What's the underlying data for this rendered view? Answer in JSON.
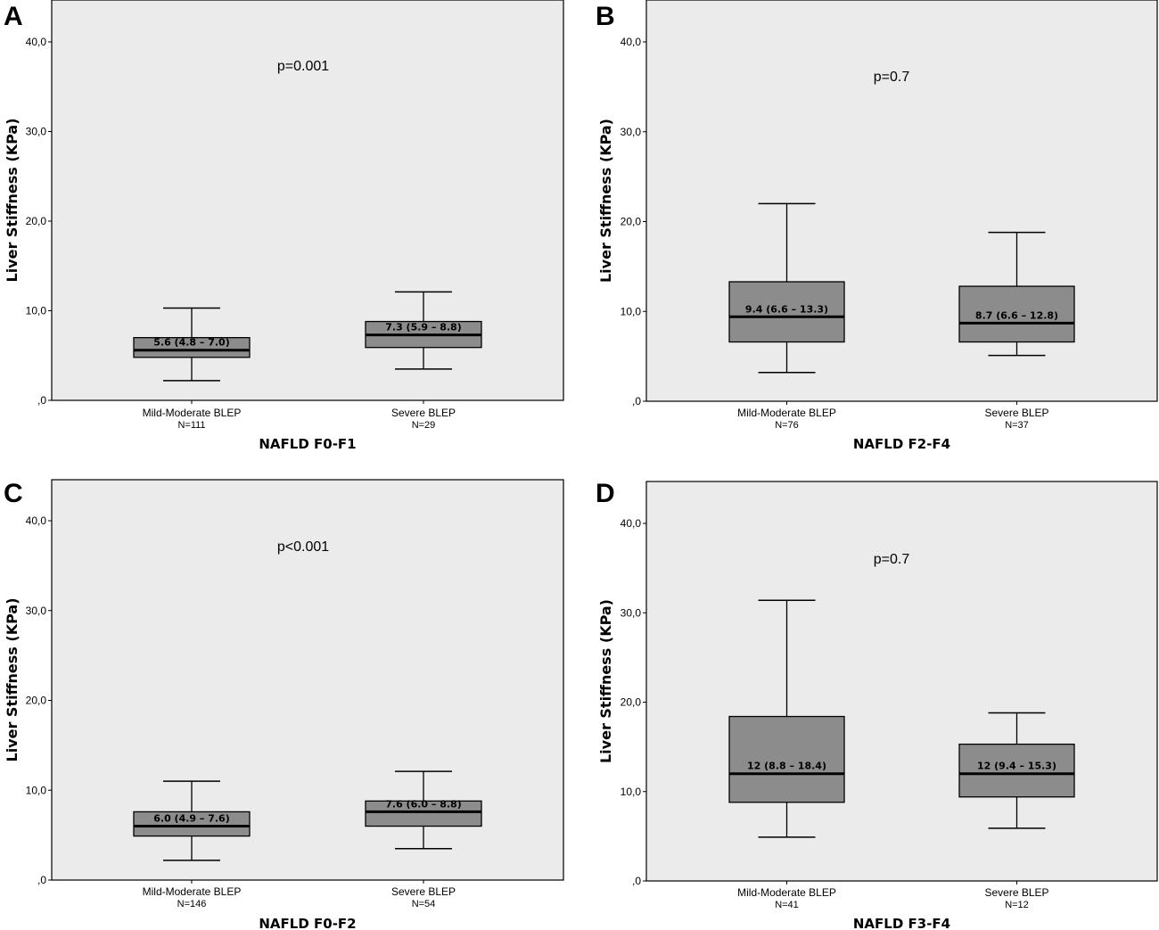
{
  "chart_data": [
    {
      "type": "box",
      "panel": "A",
      "xlabel": "NAFLD F0-F1",
      "ylabel": "Liver Stiffness (KPa)",
      "ylim": [
        0,
        40
      ],
      "yticks": [
        0,
        10,
        20,
        30,
        40
      ],
      "ytick_labels": [
        ",0",
        "10,0",
        "20,0",
        "30,0",
        "40,0"
      ],
      "annotation": "p=0.001",
      "color": "#8c8c8c",
      "background": "#ebebeb",
      "boxes": [
        {
          "category": "Mild-Moderate BLEP",
          "n_label": "N=111",
          "min": 2.2,
          "q1": 4.8,
          "median": 5.6,
          "q3": 7.0,
          "max": 10.3,
          "label": "5.6 (4.8 – 7.0)"
        },
        {
          "category": "Severe BLEP",
          "n_label": "N=29",
          "min": 3.5,
          "q1": 5.9,
          "median": 7.3,
          "q3": 8.8,
          "max": 12.1,
          "label": "7.3 (5.9 – 8.8)"
        }
      ]
    },
    {
      "type": "box",
      "panel": "B",
      "xlabel": "NAFLD F2-F4",
      "ylabel": "Liver Stiffness (KPa)",
      "ylim": [
        0,
        40
      ],
      "yticks": [
        0,
        10,
        20,
        30,
        40
      ],
      "ytick_labels": [
        ",0",
        "10,0",
        "20,0",
        "30,0",
        "40,0"
      ],
      "annotation": "p=0.7",
      "color": "#8c8c8c",
      "background": "#ebebeb",
      "boxes": [
        {
          "category": "Mild-Moderate BLEP",
          "n_label": "N=76",
          "min": 3.2,
          "q1": 6.6,
          "median": 9.4,
          "q3": 13.3,
          "max": 22.0,
          "label": "9.4 (6.6 – 13.3)"
        },
        {
          "category": "Severe BLEP",
          "n_label": "N=37",
          "min": 5.1,
          "q1": 6.6,
          "median": 8.7,
          "q3": 12.8,
          "max": 18.8,
          "label": "8.7 (6.6 – 12.8)"
        }
      ]
    },
    {
      "type": "box",
      "panel": "C",
      "xlabel": "NAFLD F0-F2",
      "ylabel": "Liver Stiffness (KPa)",
      "ylim": [
        0,
        40
      ],
      "yticks": [
        0,
        10,
        20,
        30,
        40
      ],
      "ytick_labels": [
        ",0",
        "10,0",
        "20,0",
        "30,0",
        "40,0"
      ],
      "annotation": "p<0.001",
      "color": "#8c8c8c",
      "background": "#ebebeb",
      "boxes": [
        {
          "category": "Mild-Moderate BLEP",
          "n_label": "N=146",
          "min": 2.2,
          "q1": 4.9,
          "median": 6.0,
          "q3": 7.6,
          "max": 11.0,
          "label": "6.0 (4.9 – 7.6)"
        },
        {
          "category": "Severe BLEP",
          "n_label": "N=54",
          "min": 3.5,
          "q1": 6.0,
          "median": 7.6,
          "q3": 8.8,
          "max": 12.1,
          "label": "7.6 (6.0 – 8.8)"
        }
      ]
    },
    {
      "type": "box",
      "panel": "D",
      "xlabel": "NAFLD F3-F4",
      "ylabel": "Liver Stiffness (KPa)",
      "ylim": [
        0,
        40
      ],
      "yticks": [
        0,
        10,
        20,
        30,
        40
      ],
      "ytick_labels": [
        ",0",
        "10,0",
        "20,0",
        "30,0",
        "40,0"
      ],
      "annotation": "p=0.7",
      "color": "#8c8c8c",
      "background": "#ebebeb",
      "boxes": [
        {
          "category": "Mild-Moderate BLEP",
          "n_label": "N=41",
          "min": 4.9,
          "q1": 8.8,
          "median": 12.0,
          "q3": 18.4,
          "max": 31.4,
          "label": "12 (8.8 – 18.4)"
        },
        {
          "category": "Severe BLEP",
          "n_label": "N=12",
          "min": 5.9,
          "q1": 9.4,
          "median": 12.0,
          "q3": 15.3,
          "max": 18.8,
          "label": "12 (9.4 – 15.3)"
        }
      ]
    }
  ]
}
